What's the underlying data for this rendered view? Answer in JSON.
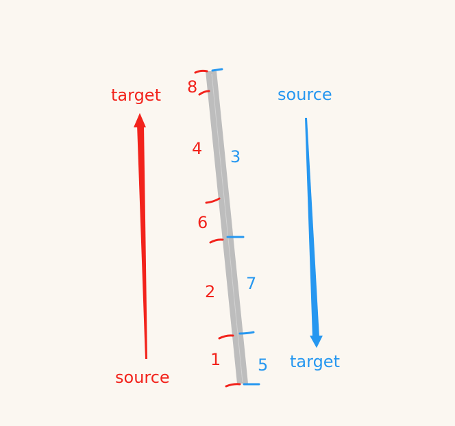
{
  "colors": {
    "red": "#f2231c",
    "blue": "#2697f0",
    "road": "#bdbdbd",
    "background": "#fbf7f1"
  },
  "red_direction": {
    "from_label": "source",
    "to_label": "target"
  },
  "blue_direction": {
    "from_label": "source",
    "to_label": "target"
  },
  "red_segments": [
    "8",
    "4",
    "6",
    "2",
    "1"
  ],
  "blue_segments": [
    "3",
    "7",
    "5"
  ]
}
